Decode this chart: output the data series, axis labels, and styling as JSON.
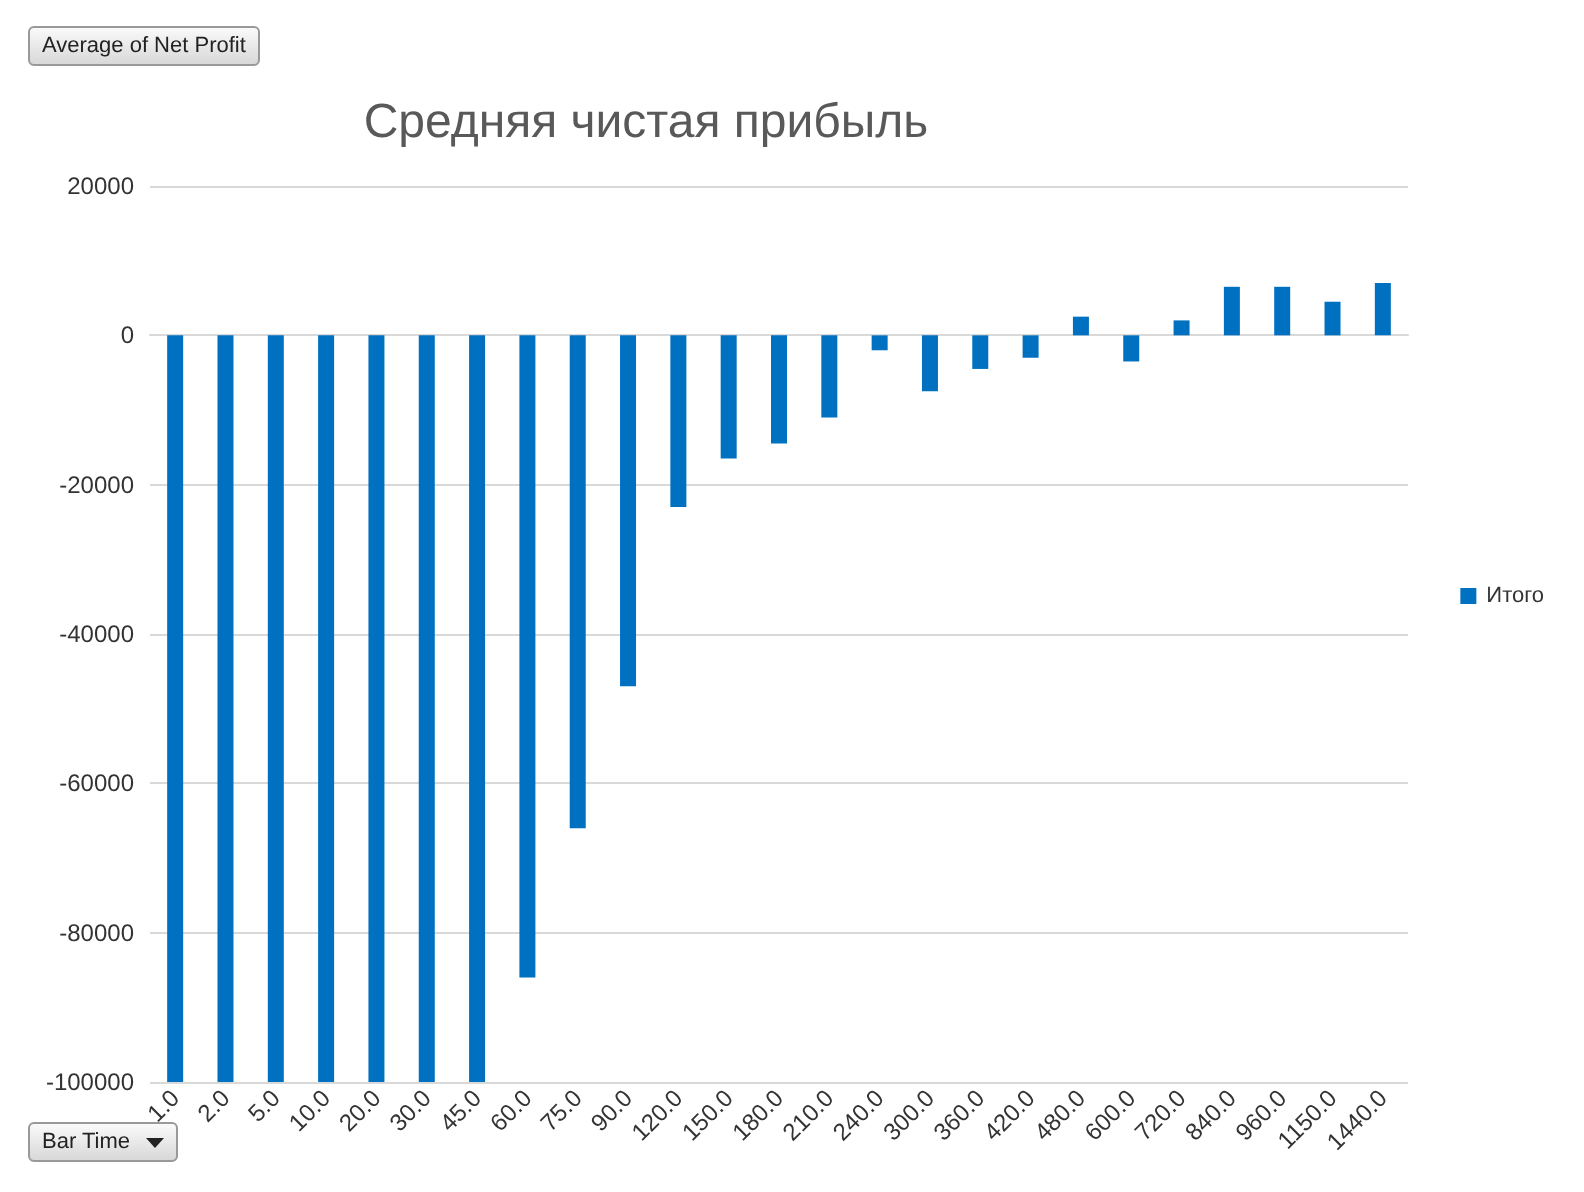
{
  "chart_data": {
    "type": "bar",
    "title": "Средняя чистая прибыль",
    "categories": [
      "1.0",
      "2.0",
      "5.0",
      "10.0",
      "20.0",
      "30.0",
      "45.0",
      "60.0",
      "75.0",
      "90.0",
      "120.0",
      "150.0",
      "180.0",
      "210.0",
      "240.0",
      "300.0",
      "360.0",
      "420.0",
      "480.0",
      "600.0",
      "720.0",
      "840.0",
      "960.0",
      "1150.0",
      "1440.0"
    ],
    "series": [
      {
        "name": "Итого",
        "color": "#0070c0",
        "values": [
          -100000,
          -100000,
          -100000,
          -100000,
          -100000,
          -100000,
          -100000,
          -86000,
          -66000,
          -47000,
          -23000,
          -16500,
          -14500,
          -11000,
          -2000,
          -7500,
          -4500,
          -3000,
          2500,
          -3500,
          2000,
          6500,
          6500,
          4500,
          7000
        ]
      }
    ],
    "ylim": [
      -100000,
      20000
    ],
    "yticks": [
      -100000,
      -80000,
      -60000,
      -40000,
      -20000,
      0,
      20000
    ],
    "grid": "y",
    "legend": "right",
    "annotations": [
      "Average of Net Profit",
      "Bar Time"
    ]
  }
}
